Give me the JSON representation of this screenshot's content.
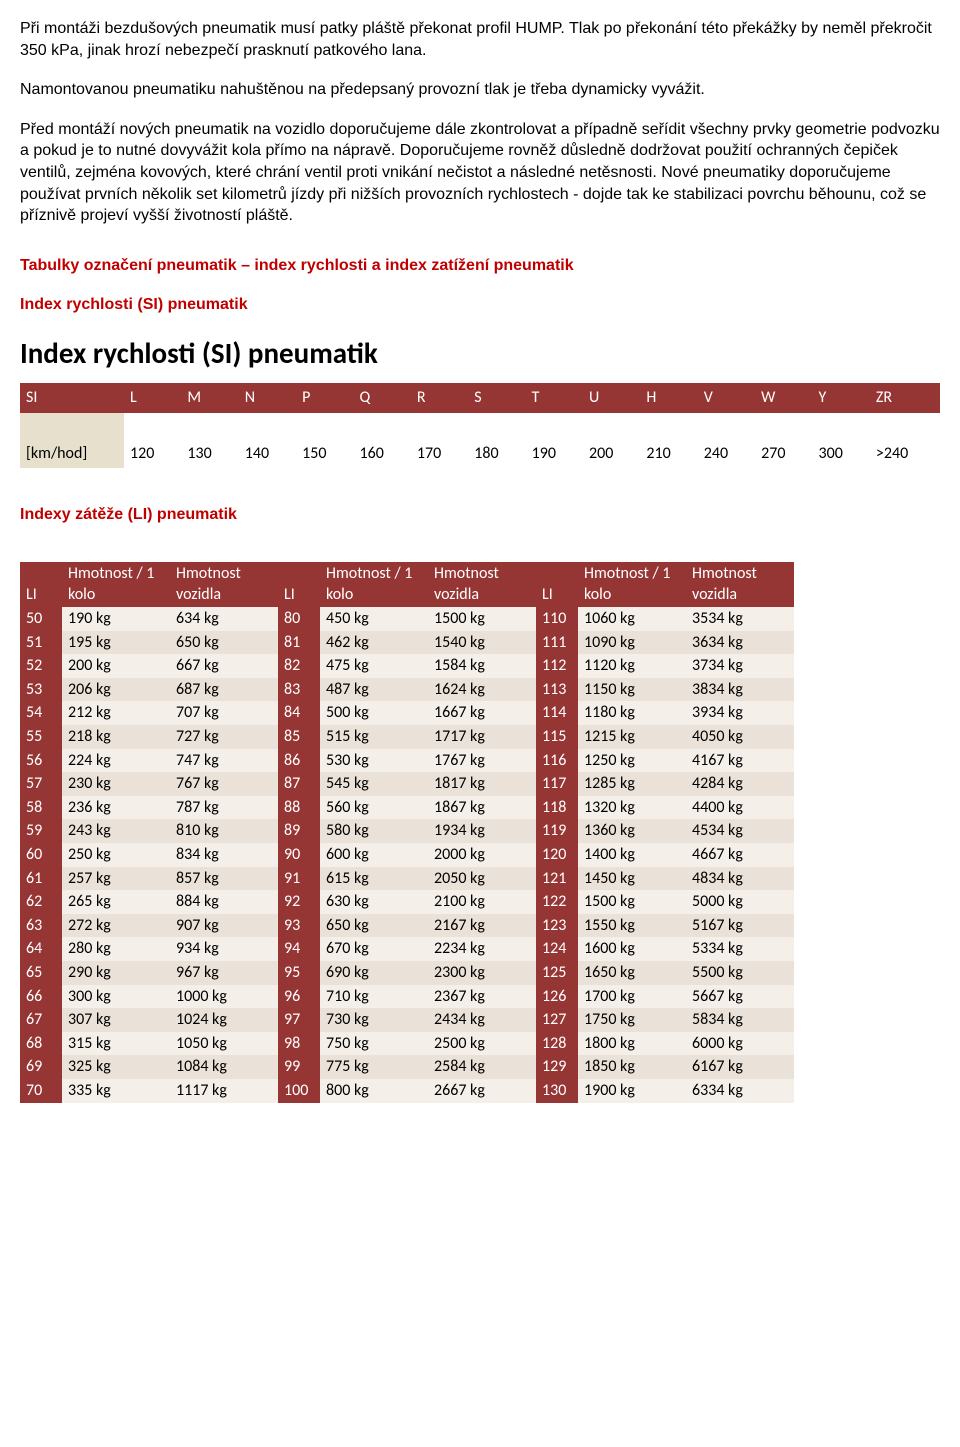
{
  "paragraphs": {
    "p1": "Při montáži bezdušových pneumatik musí patky pláště překonat profil HUMP. Tlak po překonání této překážky by neměl překročit 350 kPa, jinak hrozí nebezpečí prasknutí patkového lana.",
    "p2": "Namontovanou pneumatiku nahuštěnou na předepsaný provozní tlak je třeba dynamicky vyvážit.",
    "p3": "Před montáží nových pneumatik na vozidlo doporučujeme dále zkontrolovat a případně seřídit všechny prvky geometrie podvozku a pokud je to nutné dovyvážit kola přímo na nápravě. Doporučujeme rovněž důsledně dodržovat použití ochranných čepiček ventilů, zejména kovových, které chrání ventil proti vnikání nečistot a následné netěsnosti. Nové pneumatiky doporučujeme používat prvních několik set kilometrů jízdy při nižších provozních rychlostech - dojde tak ke stabilizaci povrchu běhounu, což se příznivě projeví vyšší životností pláště."
  },
  "headings": {
    "main_red": "Tabulky označení pneumatik – index rychlosti a index zatížení pneumatik",
    "si_sub": "Index rychlosti (SI) pneumatik",
    "si_big": "Index rychlosti (SI) pneumatik",
    "li_sub": "Indexy zátěže (LI) pneumatik"
  },
  "si_table": {
    "col0": "SI",
    "codes": [
      "L",
      "M",
      "N",
      "P",
      "Q",
      "R",
      "S",
      "T",
      "U",
      "H",
      "V",
      "W",
      "Y",
      "ZR"
    ],
    "row_label": "[km/hod]",
    "values": [
      "120",
      "130",
      "140",
      "150",
      "160",
      "170",
      "180",
      "190",
      "200",
      "210",
      "240",
      "270",
      "300",
      ">240"
    ]
  },
  "li_table": {
    "headers": {
      "li": "LI",
      "wheel": "Hmotnost / 1 kolo",
      "vehicle": "Hmotnost vozidla"
    },
    "rows": [
      {
        "a": [
          "50",
          "190 kg",
          "634 kg"
        ],
        "b": [
          "80",
          "450 kg",
          "1500 kg"
        ],
        "c": [
          "110",
          "1060 kg",
          "3534 kg"
        ]
      },
      {
        "a": [
          "51",
          "195 kg",
          "650 kg"
        ],
        "b": [
          "81",
          "462 kg",
          "1540 kg"
        ],
        "c": [
          "111",
          "1090 kg",
          "3634 kg"
        ]
      },
      {
        "a": [
          "52",
          "200 kg",
          "667 kg"
        ],
        "b": [
          "82",
          "475 kg",
          "1584 kg"
        ],
        "c": [
          "112",
          "1120 kg",
          "3734 kg"
        ]
      },
      {
        "a": [
          "53",
          "206 kg",
          "687 kg"
        ],
        "b": [
          "83",
          "487 kg",
          "1624 kg"
        ],
        "c": [
          "113",
          "1150 kg",
          "3834 kg"
        ]
      },
      {
        "a": [
          "54",
          "212 kg",
          "707 kg"
        ],
        "b": [
          "84",
          "500 kg",
          "1667 kg"
        ],
        "c": [
          "114",
          "1180 kg",
          "3934 kg"
        ]
      },
      {
        "a": [
          "55",
          "218 kg",
          "727 kg"
        ],
        "b": [
          "85",
          "515 kg",
          "1717 kg"
        ],
        "c": [
          "115",
          "1215 kg",
          "4050 kg"
        ]
      },
      {
        "a": [
          "56",
          "224 kg",
          "747 kg"
        ],
        "b": [
          "86",
          "530 kg",
          "1767 kg"
        ],
        "c": [
          "116",
          "1250 kg",
          "4167 kg"
        ]
      },
      {
        "a": [
          "57",
          "230 kg",
          "767 kg"
        ],
        "b": [
          "87",
          "545 kg",
          "1817 kg"
        ],
        "c": [
          "117",
          "1285 kg",
          "4284 kg"
        ]
      },
      {
        "a": [
          "58",
          "236 kg",
          "787 kg"
        ],
        "b": [
          "88",
          "560 kg",
          "1867 kg"
        ],
        "c": [
          "118",
          "1320 kg",
          "4400 kg"
        ]
      },
      {
        "a": [
          "59",
          "243 kg",
          "810 kg"
        ],
        "b": [
          "89",
          "580 kg",
          "1934 kg"
        ],
        "c": [
          "119",
          "1360 kg",
          "4534 kg"
        ]
      },
      {
        "a": [
          "60",
          "250 kg",
          "834 kg"
        ],
        "b": [
          "90",
          "600 kg",
          "2000 kg"
        ],
        "c": [
          "120",
          "1400 kg",
          "4667 kg"
        ]
      },
      {
        "a": [
          "61",
          "257 kg",
          "857 kg"
        ],
        "b": [
          "91",
          "615 kg",
          "2050 kg"
        ],
        "c": [
          "121",
          "1450 kg",
          "4834 kg"
        ]
      },
      {
        "a": [
          "62",
          "265 kg",
          "884 kg"
        ],
        "b": [
          "92",
          "630 kg",
          "2100 kg"
        ],
        "c": [
          "122",
          "1500 kg",
          "5000 kg"
        ]
      },
      {
        "a": [
          "63",
          "272 kg",
          "907 kg"
        ],
        "b": [
          "93",
          "650 kg",
          "2167 kg"
        ],
        "c": [
          "123",
          "1550 kg",
          "5167 kg"
        ]
      },
      {
        "a": [
          "64",
          "280 kg",
          "934 kg"
        ],
        "b": [
          "94",
          "670 kg",
          "2234 kg"
        ],
        "c": [
          "124",
          "1600 kg",
          "5334 kg"
        ]
      },
      {
        "a": [
          "65",
          "290 kg",
          "967 kg"
        ],
        "b": [
          "95",
          "690 kg",
          "2300 kg"
        ],
        "c": [
          "125",
          "1650 kg",
          "5500 kg"
        ]
      },
      {
        "a": [
          "66",
          "300 kg",
          "1000 kg"
        ],
        "b": [
          "96",
          "710 kg",
          "2367 kg"
        ],
        "c": [
          "126",
          "1700 kg",
          "5667 kg"
        ]
      },
      {
        "a": [
          "67",
          "307 kg",
          "1024 kg"
        ],
        "b": [
          "97",
          "730 kg",
          "2434 kg"
        ],
        "c": [
          "127",
          "1750 kg",
          "5834 kg"
        ]
      },
      {
        "a": [
          "68",
          "315 kg",
          "1050 kg"
        ],
        "b": [
          "98",
          "750 kg",
          "2500 kg"
        ],
        "c": [
          "128",
          "1800 kg",
          "6000 kg"
        ]
      },
      {
        "a": [
          "69",
          "325 kg",
          "1084 kg"
        ],
        "b": [
          "99",
          "775 kg",
          "2584 kg"
        ],
        "c": [
          "129",
          "1850 kg",
          "6167 kg"
        ]
      },
      {
        "a": [
          "70",
          "335 kg",
          "1117 kg"
        ],
        "b": [
          "100",
          "800 kg",
          "2667 kg"
        ],
        "c": [
          "130",
          "1900 kg",
          "6334 kg"
        ]
      }
    ]
  },
  "colors": {
    "heading_red": "#c00000",
    "table_header_bg": "#963634",
    "table_header_fg": "#ffffff",
    "si_label_bg": "#e6e0cc",
    "li_row_even": "#f4efe9",
    "li_row_odd": "#eae2d8"
  }
}
